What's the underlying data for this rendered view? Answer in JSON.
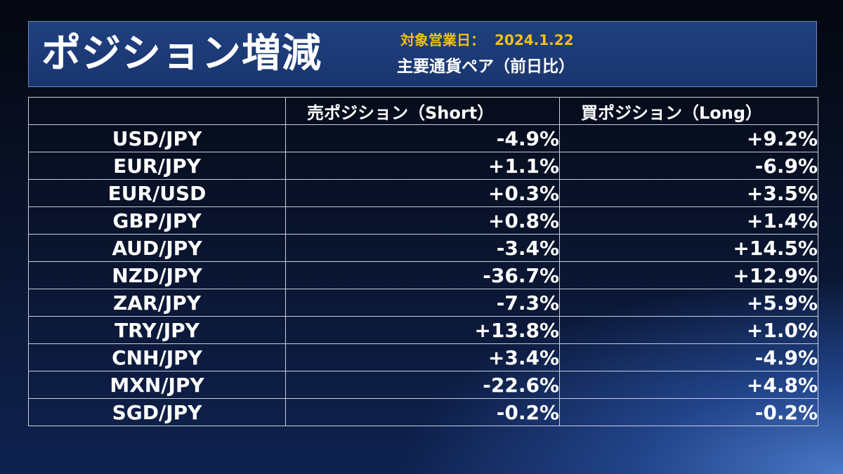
{
  "header": {
    "title": "ポジション増減",
    "date_label": "対象営業日：",
    "date_value": "2024.1.22",
    "subtitle": "主要通貨ペア（前日比）"
  },
  "table": {
    "columns": [
      "",
      "売ポジション（Short）",
      "買ポジション（Long）"
    ],
    "rows": [
      {
        "pair": "USD/JPY",
        "short": "-4.9%",
        "long": "+9.2%"
      },
      {
        "pair": "EUR/JPY",
        "short": "+1.1%",
        "long": "-6.9%"
      },
      {
        "pair": "EUR/USD",
        "short": "+0.3%",
        "long": "+3.5%"
      },
      {
        "pair": "GBP/JPY",
        "short": "+0.8%",
        "long": "+1.4%"
      },
      {
        "pair": "AUD/JPY",
        "short": "-3.4%",
        "long": "+14.5%"
      },
      {
        "pair": "NZD/JPY",
        "short": "-36.7%",
        "long": "+12.9%"
      },
      {
        "pair": "ZAR/JPY",
        "short": "-7.3%",
        "long": "+5.9%"
      },
      {
        "pair": "TRY/JPY",
        "short": "+13.8%",
        "long": "+1.0%"
      },
      {
        "pair": "CNH/JPY",
        "short": "+3.4%",
        "long": "-4.9%"
      },
      {
        "pair": "MXN/JPY",
        "short": "-22.6%",
        "long": "+4.8%"
      },
      {
        "pair": "SGD/JPY",
        "short": "-0.2%",
        "long": "-0.2%"
      }
    ]
  },
  "colors": {
    "banner_bg": "#1f3f7e",
    "date_accent": "#f2c10f",
    "text": "#ffffff",
    "grid": "#c8d0e0"
  }
}
